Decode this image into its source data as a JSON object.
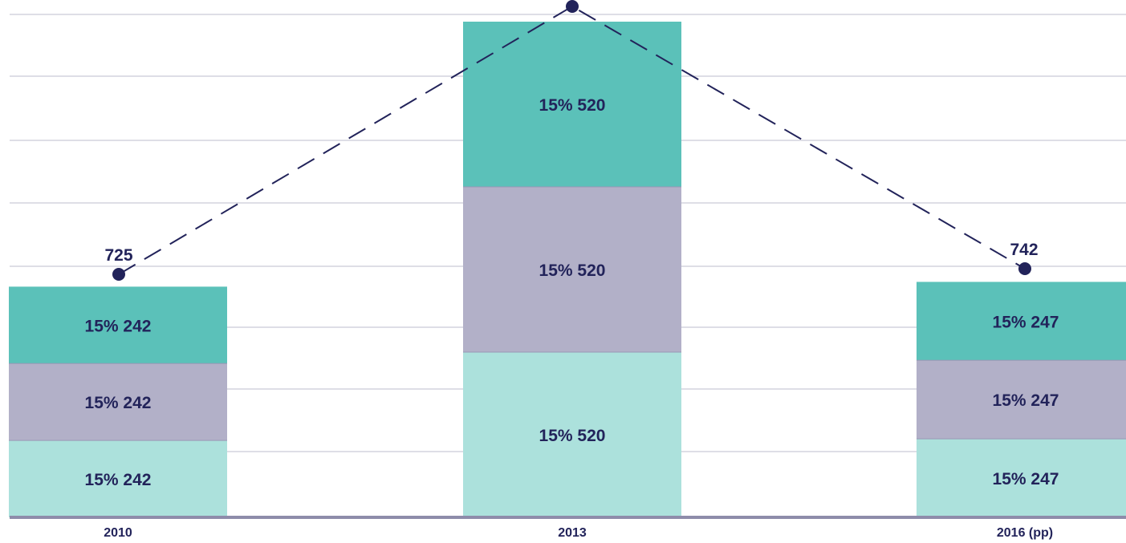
{
  "chart_data": {
    "type": "bar",
    "stacked": true,
    "categories": [
      "2010",
      "2013",
      "2016 (pp)"
    ],
    "series": [
      {
        "color": "#ace1dc",
        "values": [
          242,
          520,
          247
        ],
        "labels": [
          "15% 242",
          "15% 520",
          "15% 247"
        ]
      },
      {
        "color": "#b2b0c8",
        "values": [
          242,
          520,
          247
        ],
        "labels": [
          "15% 242",
          "15% 520",
          "15% 247"
        ]
      },
      {
        "color": "#5bc1b9",
        "values": [
          242,
          520,
          247
        ],
        "labels": [
          "15% 242",
          "15% 520",
          "15% 247"
        ]
      }
    ],
    "line": {
      "style": "dashed",
      "color": "#22235a",
      "values": [
        725,
        1560,
        742
      ],
      "labels": [
        "725",
        "",
        "742"
      ]
    },
    "ylim": [
      0,
      1650
    ],
    "grid": true,
    "legend": "none",
    "colors": {
      "axis": "#8e8caa",
      "grid": "#c9c9d8",
      "label": "#22235a"
    }
  }
}
